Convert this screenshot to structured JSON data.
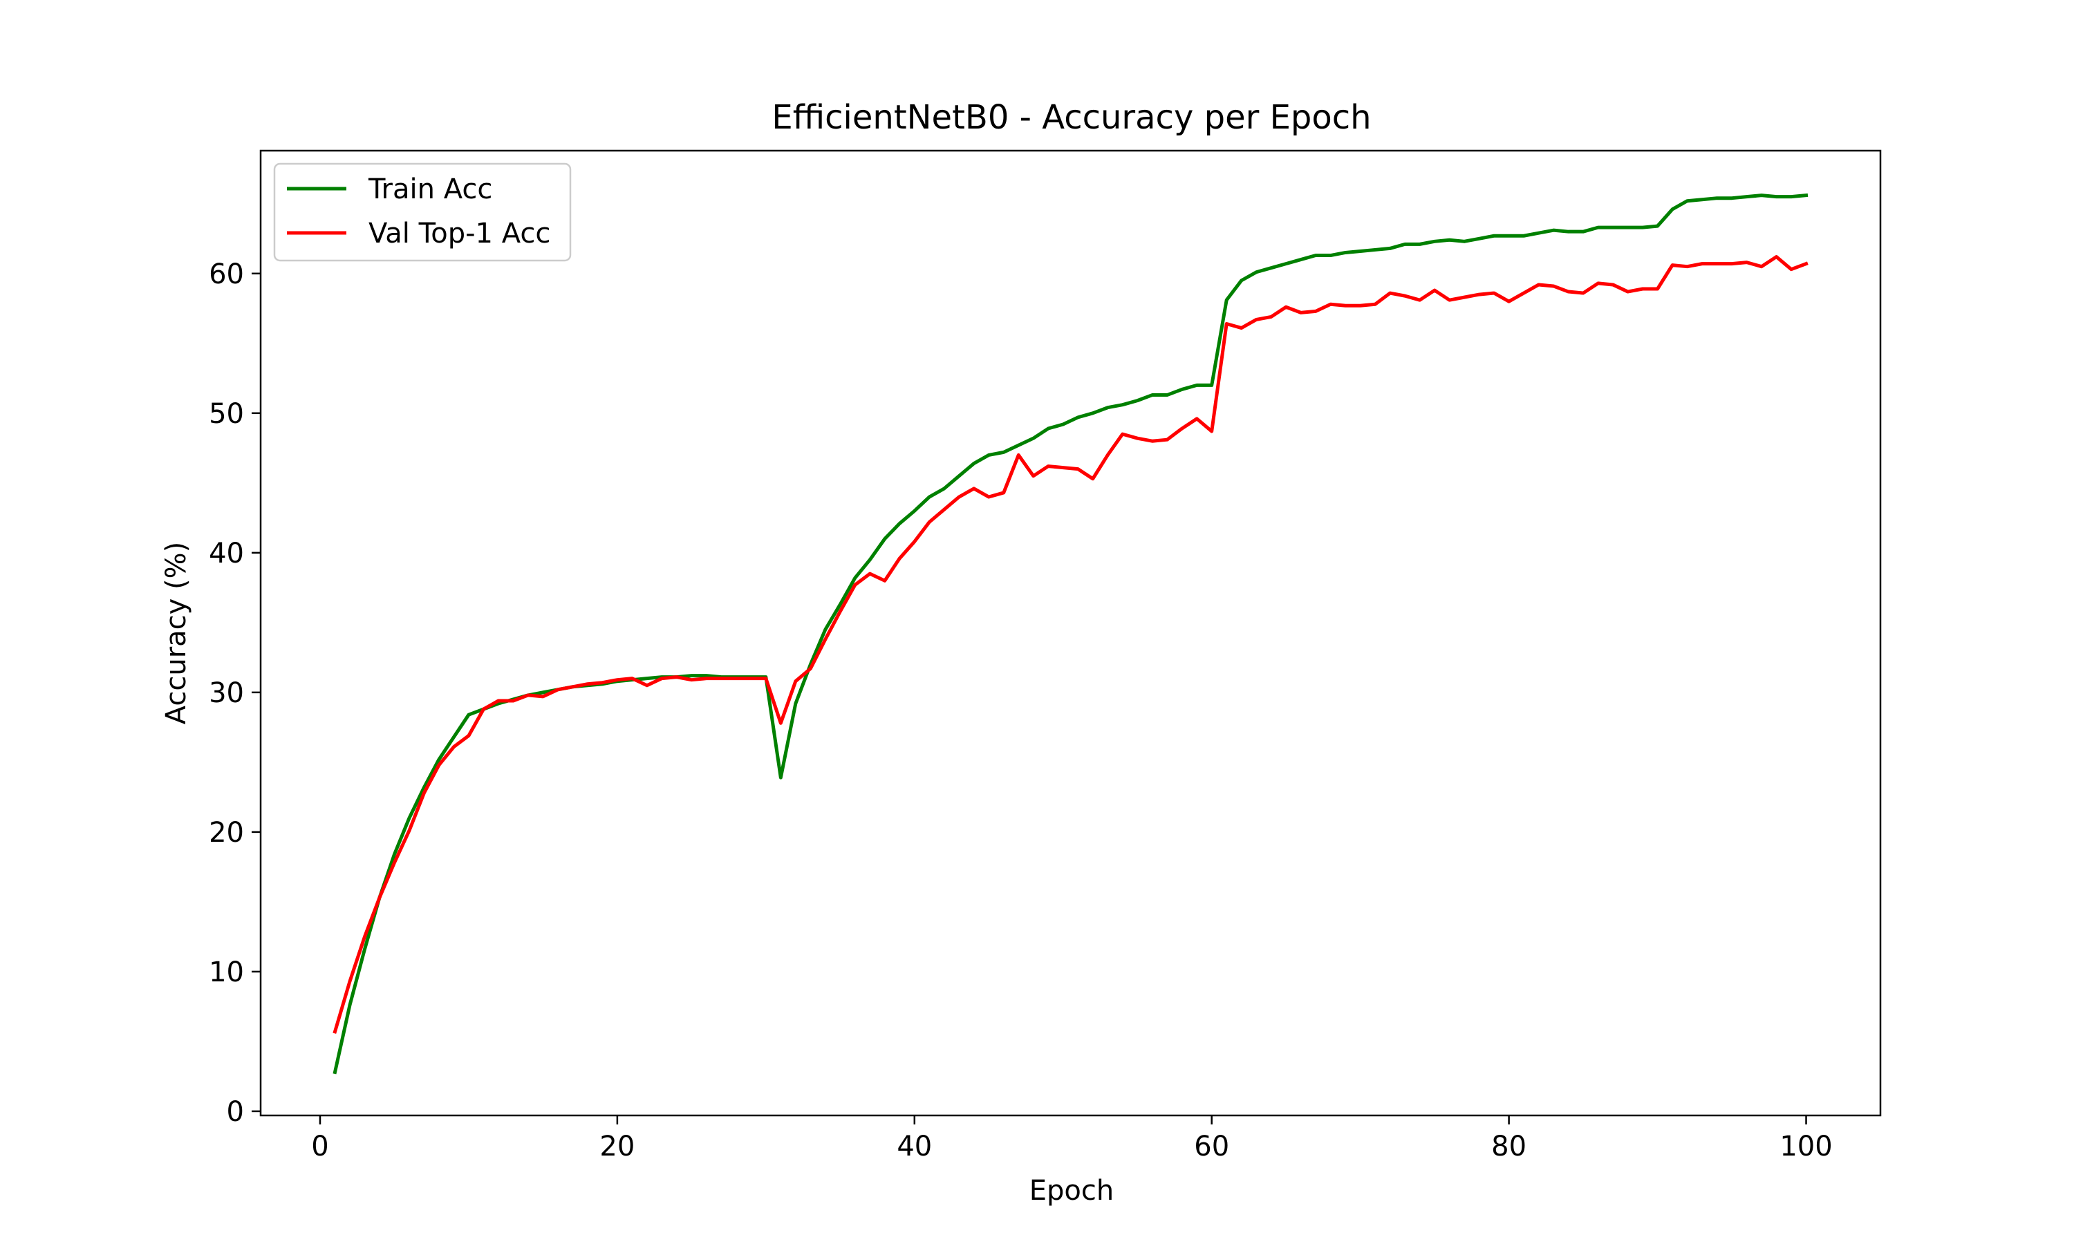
{
  "chart_data": {
    "type": "line",
    "title": "EfficientNetB0 - Accuracy per Epoch",
    "xlabel": "Epoch",
    "ylabel": "Accuracy (%)",
    "xlim": [
      -4,
      105
    ],
    "ylim": [
      -0.3,
      68.8
    ],
    "xticks": [
      0,
      20,
      40,
      60,
      80,
      100
    ],
    "yticks": [
      0,
      10,
      20,
      30,
      40,
      50,
      60
    ],
    "grid": false,
    "legend_position": "upper-left",
    "x": [
      1,
      2,
      3,
      4,
      5,
      6,
      7,
      8,
      9,
      10,
      11,
      12,
      13,
      14,
      15,
      16,
      17,
      18,
      19,
      20,
      21,
      22,
      23,
      24,
      25,
      26,
      27,
      28,
      29,
      30,
      31,
      32,
      33,
      34,
      35,
      36,
      37,
      38,
      39,
      40,
      41,
      42,
      43,
      44,
      45,
      46,
      47,
      48,
      49,
      50,
      51,
      52,
      53,
      54,
      55,
      56,
      57,
      58,
      59,
      60,
      61,
      62,
      63,
      64,
      65,
      66,
      67,
      68,
      69,
      70,
      71,
      72,
      73,
      74,
      75,
      76,
      77,
      78,
      79,
      80,
      81,
      82,
      83,
      84,
      85,
      86,
      87,
      88,
      89,
      90,
      91,
      92,
      93,
      94,
      95,
      96,
      97,
      98,
      99,
      100
    ],
    "series": [
      {
        "name": "Train Acc",
        "color": "#008000",
        "values": [
          2.8,
          7.6,
          11.6,
          15.3,
          18.4,
          21.0,
          23.2,
          25.2,
          26.8,
          28.4,
          28.8,
          29.2,
          29.5,
          29.8,
          30.0,
          30.2,
          30.4,
          30.5,
          30.6,
          30.8,
          30.9,
          31.0,
          31.1,
          31.1,
          31.2,
          31.2,
          31.1,
          31.1,
          31.1,
          31.1,
          23.9,
          29.2,
          32.0,
          34.5,
          36.3,
          38.2,
          39.5,
          41.0,
          42.1,
          43.0,
          44.0,
          44.6,
          45.5,
          46.4,
          47.0,
          47.2,
          47.7,
          48.2,
          48.9,
          49.2,
          49.7,
          50.0,
          50.4,
          50.6,
          50.9,
          51.3,
          51.3,
          51.7,
          52.0,
          52.0,
          58.1,
          59.5,
          60.1,
          60.4,
          60.7,
          61.0,
          61.3,
          61.3,
          61.5,
          61.6,
          61.7,
          61.8,
          62.1,
          62.1,
          62.3,
          62.4,
          62.3,
          62.5,
          62.7,
          62.7,
          62.7,
          62.9,
          63.1,
          63.0,
          63.0,
          63.3,
          63.3,
          63.3,
          63.3,
          63.4,
          64.6,
          65.2,
          65.3,
          65.4,
          65.4,
          65.5,
          65.6,
          65.5,
          65.5,
          65.6
        ]
      },
      {
        "name": "Val Top-1 Acc",
        "color": "#ff0000",
        "values": [
          5.7,
          9.3,
          12.5,
          15.3,
          17.8,
          20.1,
          22.8,
          24.8,
          26.1,
          26.9,
          28.8,
          29.4,
          29.4,
          29.8,
          29.7,
          30.2,
          30.4,
          30.6,
          30.7,
          30.9,
          31.0,
          30.5,
          31.0,
          31.1,
          30.9,
          31.0,
          31.0,
          31.0,
          31.0,
          31.0,
          27.8,
          30.8,
          31.7,
          33.8,
          35.8,
          37.7,
          38.5,
          38.0,
          39.6,
          40.8,
          42.2,
          43.1,
          44.0,
          44.6,
          44.0,
          44.3,
          47.0,
          45.5,
          46.2,
          46.1,
          46.0,
          45.3,
          47.0,
          48.5,
          48.2,
          48.0,
          48.1,
          48.9,
          49.6,
          48.7,
          56.4,
          56.1,
          56.7,
          56.9,
          57.6,
          57.2,
          57.3,
          57.8,
          57.7,
          57.7,
          57.8,
          58.6,
          58.4,
          58.1,
          58.8,
          58.1,
          58.3,
          58.5,
          58.6,
          58.0,
          58.6,
          59.2,
          59.1,
          58.7,
          58.6,
          59.3,
          59.2,
          58.7,
          58.9,
          58.9,
          60.6,
          60.5,
          60.7,
          60.7,
          60.7,
          60.8,
          60.5,
          61.2,
          60.3,
          60.7
        ]
      }
    ]
  }
}
